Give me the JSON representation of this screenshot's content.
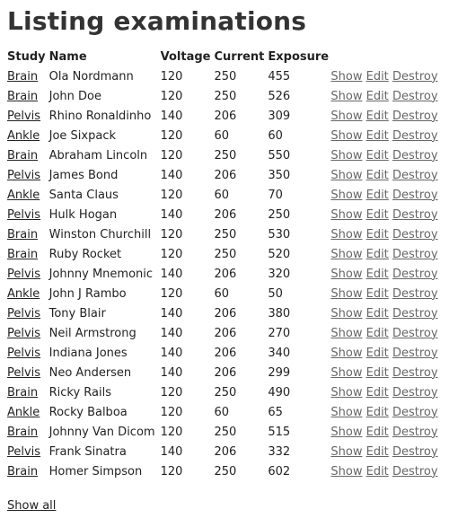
{
  "page": {
    "title": "Listing examinations"
  },
  "table": {
    "headers": [
      "Study",
      "Name",
      "Voltage",
      "Current",
      "Exposure"
    ],
    "actions": [
      "Show",
      "Edit",
      "Destroy"
    ],
    "rows": [
      {
        "study": "Brain",
        "name": "Ola Nordmann",
        "voltage": "120",
        "current": "250",
        "exposure": "455"
      },
      {
        "study": "Brain",
        "name": "John Doe",
        "voltage": "120",
        "current": "250",
        "exposure": "526"
      },
      {
        "study": "Pelvis",
        "name": "Rhino Ronaldinho",
        "voltage": "140",
        "current": "206",
        "exposure": "309"
      },
      {
        "study": "Ankle",
        "name": "Joe Sixpack",
        "voltage": "120",
        "current": "60",
        "exposure": "60"
      },
      {
        "study": "Brain",
        "name": "Abraham Lincoln",
        "voltage": "120",
        "current": "250",
        "exposure": "550"
      },
      {
        "study": "Pelvis",
        "name": "James Bond",
        "voltage": "140",
        "current": "206",
        "exposure": "350"
      },
      {
        "study": "Ankle",
        "name": "Santa Claus",
        "voltage": "120",
        "current": "60",
        "exposure": "70"
      },
      {
        "study": "Pelvis",
        "name": "Hulk Hogan",
        "voltage": "140",
        "current": "206",
        "exposure": "250"
      },
      {
        "study": "Brain",
        "name": "Winston Churchill",
        "voltage": "120",
        "current": "250",
        "exposure": "530"
      },
      {
        "study": "Brain",
        "name": "Ruby Rocket",
        "voltage": "120",
        "current": "250",
        "exposure": "520"
      },
      {
        "study": "Pelvis",
        "name": "Johnny Mnemonic",
        "voltage": "140",
        "current": "206",
        "exposure": "320"
      },
      {
        "study": "Ankle",
        "name": "John J Rambo",
        "voltage": "120",
        "current": "60",
        "exposure": "50"
      },
      {
        "study": "Pelvis",
        "name": "Tony Blair",
        "voltage": "140",
        "current": "206",
        "exposure": "380"
      },
      {
        "study": "Pelvis",
        "name": "Neil Armstrong",
        "voltage": "140",
        "current": "206",
        "exposure": "270"
      },
      {
        "study": "Pelvis",
        "name": "Indiana Jones",
        "voltage": "140",
        "current": "206",
        "exposure": "340"
      },
      {
        "study": "Pelvis",
        "name": "Neo Andersen",
        "voltage": "140",
        "current": "206",
        "exposure": "299"
      },
      {
        "study": "Brain",
        "name": "Ricky Rails",
        "voltage": "120",
        "current": "250",
        "exposure": "490"
      },
      {
        "study": "Ankle",
        "name": "Rocky Balboa",
        "voltage": "120",
        "current": "60",
        "exposure": "65"
      },
      {
        "study": "Brain",
        "name": "Johnny Van Dicom",
        "voltage": "120",
        "current": "250",
        "exposure": "515"
      },
      {
        "study": "Pelvis",
        "name": "Frank Sinatra",
        "voltage": "140",
        "current": "206",
        "exposure": "332"
      },
      {
        "study": "Brain",
        "name": "Homer Simpson",
        "voltage": "120",
        "current": "250",
        "exposure": "602"
      }
    ]
  },
  "footer": {
    "show_all": "Show all"
  }
}
